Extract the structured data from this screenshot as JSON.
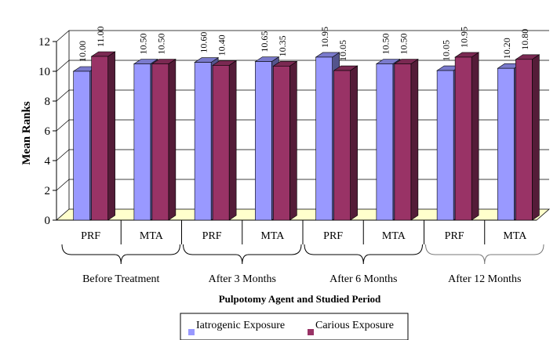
{
  "chart_data": {
    "type": "bar",
    "ylabel": "Mean Ranks",
    "xlabel": "Pulpotomy Agent and Studied Period",
    "ylim": [
      0,
      12
    ],
    "yticks": [
      "0",
      "2",
      "4",
      "6",
      "8",
      "10",
      "12"
    ],
    "categories": [
      "PRF",
      "MTA",
      "PRF",
      "MTA",
      "PRF",
      "MTA",
      "PRF",
      "MTA"
    ],
    "groups": [
      "Before Treatment",
      "After 3 Months",
      "After 6 Months",
      "After 12 Months"
    ],
    "series": [
      {
        "name": "Iatrogenic Exposure",
        "color": "#9999ff",
        "values": [
          10.0,
          10.5,
          10.6,
          10.65,
          10.95,
          10.5,
          10.05,
          10.2
        ],
        "labels": [
          "10.00",
          "10.50",
          "10.60",
          "10.65",
          "10.95",
          "10.50",
          "10.05",
          "10.20"
        ]
      },
      {
        "name": "Carious Exposure",
        "color": "#993366",
        "values": [
          11.0,
          10.5,
          10.4,
          10.35,
          10.05,
          10.5,
          10.95,
          10.8
        ],
        "labels": [
          "11.00",
          "10.50",
          "10.40",
          "10.35",
          "10.05",
          "10.50",
          "10.95",
          "10.80"
        ]
      }
    ],
    "grid": true,
    "floor_color": "#ffffcc",
    "legend_position": "bottom-center"
  }
}
